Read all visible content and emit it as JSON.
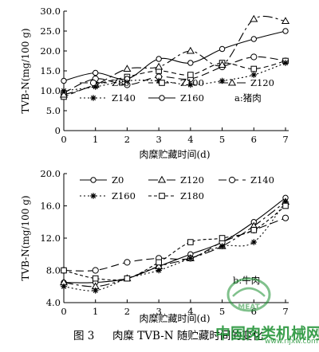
{
  "caption": {
    "fig_no": "图 3",
    "text": "肉糜 TVB-N 随贮藏时间的变化"
  },
  "watermark": {
    "site_name": "中国肉类机械网",
    "url": "www.rljxw.com",
    "logo_text": "MEAT",
    "color": "#1a8f2f"
  },
  "chart_data": [
    {
      "type": "line",
      "ylabel": "TVB-N(mg/100 g)",
      "xlabel": "肉糜贮藏时间(d)",
      "annotation": "a:猪肉",
      "x": [
        0,
        1,
        2,
        3,
        4,
        5,
        6,
        7
      ],
      "xlim": [
        0,
        7
      ],
      "ylim": [
        0,
        30
      ],
      "yticks": [
        0.0,
        5.0,
        10.0,
        15.0,
        20.0,
        25.0,
        30.0
      ],
      "ytick_labels": [
        "0",
        "5.0",
        "10.0",
        "15.0",
        "20.0",
        "25.0",
        "30.0"
      ],
      "grid": false,
      "legend_position": "inside-lower",
      "series": [
        {
          "name": "Z80",
          "marker": "circle",
          "dash": "10 5",
          "values": [
            9.5,
            13.0,
            11.5,
            13.5,
            13.0,
            16.0,
            18.5,
            17.5
          ]
        },
        {
          "name": "Z100",
          "marker": "square",
          "dash": "6 4",
          "values": [
            8.5,
            11.5,
            13.5,
            15.0,
            14.0,
            17.0,
            15.5,
            17.5
          ]
        },
        {
          "name": "Z120",
          "marker": "triangle",
          "dash": "12 4 3 4",
          "values": [
            9.0,
            11.5,
            15.5,
            16.0,
            20.0,
            16.5,
            28.0,
            27.5
          ]
        },
        {
          "name": "Z140",
          "marker": "star",
          "dash": "2 3",
          "values": [
            10.0,
            11.0,
            12.5,
            12.5,
            11.5,
            12.5,
            14.0,
            17.0
          ]
        },
        {
          "name": "Z160",
          "marker": "open-circle",
          "dash": "",
          "values": [
            12.5,
            14.5,
            13.0,
            18.0,
            17.0,
            20.5,
            23.0,
            25.0
          ]
        }
      ]
    },
    {
      "type": "line",
      "ylabel": "TVB-N(mg/100 g)",
      "xlabel": "肉糜贮藏时间(d)",
      "annotation": "b:牛肉",
      "x": [
        0,
        1,
        2,
        3,
        4,
        5,
        6,
        7
      ],
      "xlim": [
        0,
        7
      ],
      "ylim": [
        4.0,
        20.0
      ],
      "yticks": [
        4.0,
        8.0,
        12.0,
        16.0,
        20.0
      ],
      "ytick_labels": [
        "4.0",
        "8.0",
        "12.0",
        "16.0",
        "20.0"
      ],
      "grid": false,
      "legend_position": "top",
      "series": [
        {
          "name": "Z0",
          "marker": "open-circle",
          "dash": "",
          "values": [
            6.5,
            6.5,
            7.0,
            8.5,
            10.0,
            11.5,
            14.0,
            17.0
          ]
        },
        {
          "name": "Z120",
          "marker": "triangle",
          "dash": "12 4 3 4",
          "values": [
            6.5,
            6.0,
            7.0,
            8.5,
            9.5,
            11.0,
            13.5,
            16.5
          ]
        },
        {
          "name": "Z140",
          "marker": "circle",
          "dash": "10 5",
          "values": [
            8.0,
            8.0,
            9.0,
            9.5,
            9.5,
            11.5,
            13.0,
            14.5
          ]
        },
        {
          "name": "Z160",
          "marker": "star",
          "dash": "2 3",
          "values": [
            6.0,
            5.5,
            7.0,
            8.0,
            9.5,
            11.0,
            11.5,
            16.5
          ]
        },
        {
          "name": "Z180",
          "marker": "square",
          "dash": "4 3",
          "values": [
            8.0,
            7.0,
            7.0,
            9.0,
            11.5,
            12.0,
            13.0,
            16.0
          ]
        }
      ]
    }
  ]
}
